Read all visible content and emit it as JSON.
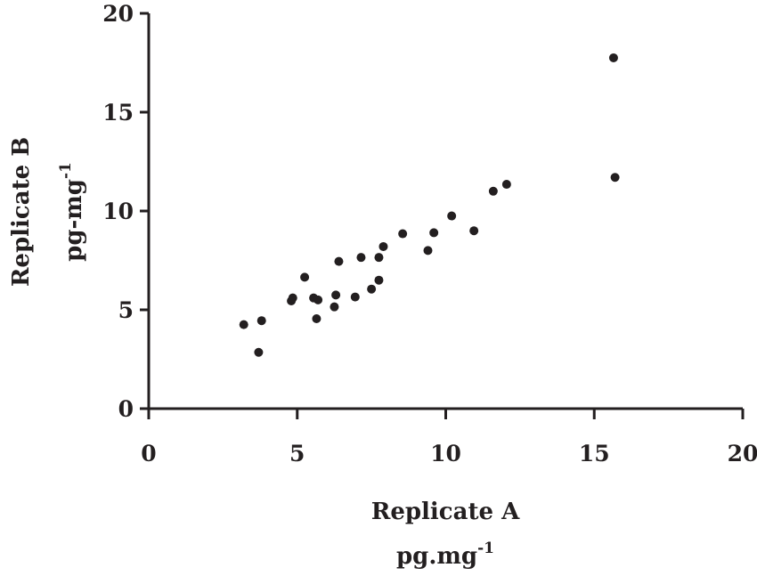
{
  "chart_data": {
    "type": "scatter",
    "title": "",
    "xlabel": {
      "line1": "Replicate A",
      "unit": "pg.mg",
      "exp": "-1"
    },
    "ylabel": {
      "line1": "Replicate B",
      "unit": "pg-mg",
      "exp": "-1"
    },
    "xlim": [
      0,
      20
    ],
    "ylim": [
      0,
      20
    ],
    "xticks": [
      "0",
      "5",
      "10",
      "15",
      "20"
    ],
    "yticks": [
      "0",
      "5",
      "10",
      "15",
      "20"
    ],
    "grid": false,
    "colors": {
      "points": "#231f20",
      "axis": "#231f20"
    },
    "series": [
      {
        "points": [
          {
            "x": 3.2,
            "y": 4.25
          },
          {
            "x": 3.7,
            "y": 2.85
          },
          {
            "x": 3.8,
            "y": 4.45
          },
          {
            "x": 4.8,
            "y": 5.45
          },
          {
            "x": 4.85,
            "y": 5.6
          },
          {
            "x": 5.25,
            "y": 6.65
          },
          {
            "x": 5.55,
            "y": 5.6
          },
          {
            "x": 5.65,
            "y": 4.55
          },
          {
            "x": 5.7,
            "y": 5.5
          },
          {
            "x": 6.25,
            "y": 5.15
          },
          {
            "x": 6.3,
            "y": 5.75
          },
          {
            "x": 6.4,
            "y": 7.45
          },
          {
            "x": 6.95,
            "y": 5.65
          },
          {
            "x": 7.15,
            "y": 7.65
          },
          {
            "x": 7.5,
            "y": 6.05
          },
          {
            "x": 7.75,
            "y": 6.5
          },
          {
            "x": 7.75,
            "y": 7.65
          },
          {
            "x": 7.9,
            "y": 8.2
          },
          {
            "x": 8.55,
            "y": 8.85
          },
          {
            "x": 9.4,
            "y": 8.0
          },
          {
            "x": 9.6,
            "y": 8.9
          },
          {
            "x": 10.2,
            "y": 9.75
          },
          {
            "x": 10.95,
            "y": 9.0
          },
          {
            "x": 11.6,
            "y": 11.0
          },
          {
            "x": 12.05,
            "y": 11.35
          },
          {
            "x": 15.65,
            "y": 17.75
          },
          {
            "x": 15.7,
            "y": 11.7
          }
        ]
      }
    ]
  }
}
